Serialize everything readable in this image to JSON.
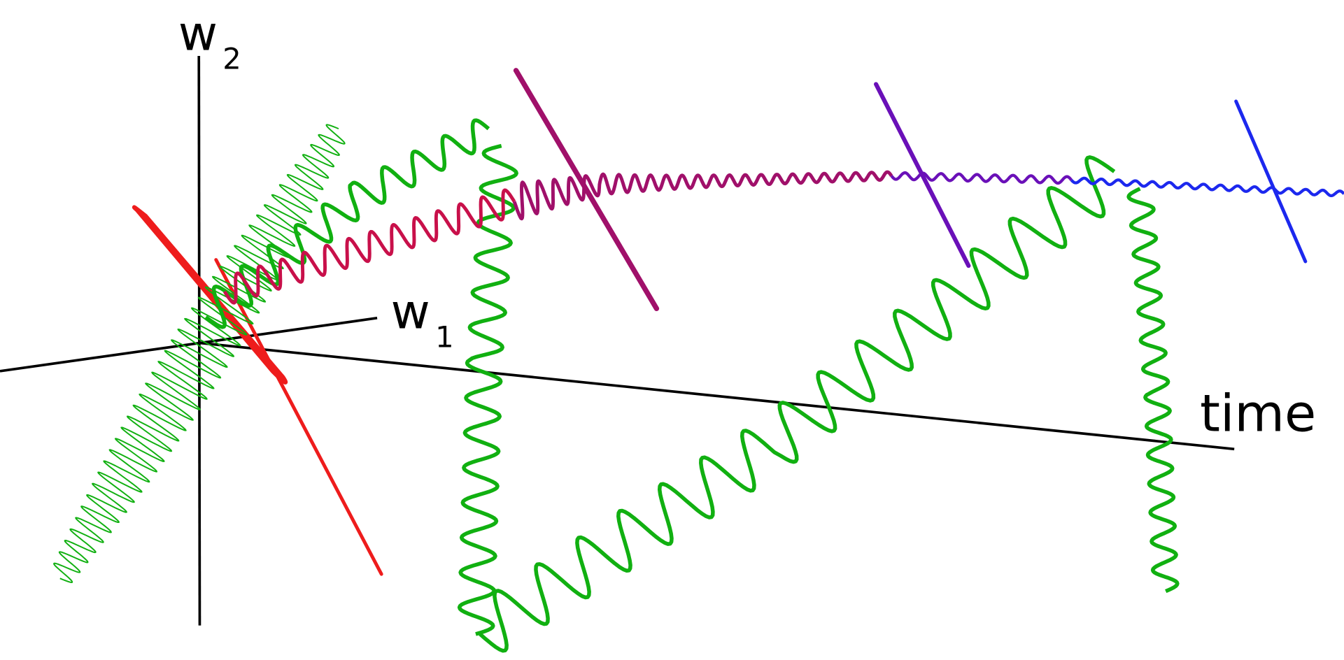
{
  "axes": {
    "w2": {
      "base": "w",
      "sub": "2"
    },
    "w1": {
      "base": "w",
      "sub": "1"
    },
    "time": "time"
  },
  "colors": {
    "axis": "#000000",
    "green": "#11b011",
    "red": "#ee1c1c",
    "crimson": "#c8104a",
    "magenta": "#a0106a",
    "purple": "#6a10b8",
    "blue": "#1c28ee"
  }
}
